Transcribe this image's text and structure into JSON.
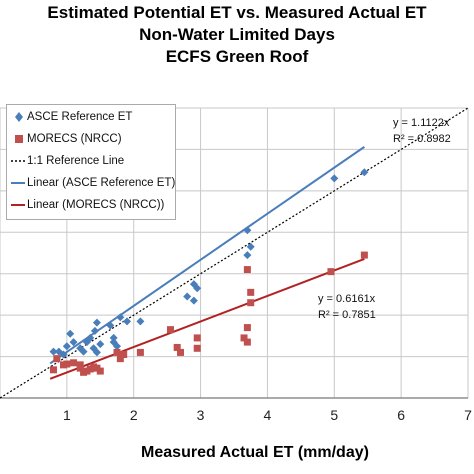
{
  "title_lines": [
    "Estimated Potential ET vs. Measured Actual ET",
    "Non-Water Limited Days",
    "ECFS Green Roof"
  ],
  "legend": [
    {
      "label": "ASCE Reference ET",
      "kind": "diamond",
      "color": "#4a7ebb"
    },
    {
      "label": "MORECS (NRCC)",
      "kind": "square",
      "color": "#c0504d"
    },
    {
      "label": "1:1 Reference Line",
      "kind": "dotted",
      "color": "#000000"
    },
    {
      "label": "Linear (ASCE Reference ET)",
      "kind": "line",
      "color": "#4a7ebb"
    },
    {
      "label": "Linear (MORECS (NRCC))",
      "kind": "line",
      "color": "#b22222"
    }
  ],
  "annotations": {
    "asce_eq": "y = 1.1122x",
    "asce_r2": "R² = 0.8982",
    "morecs_eq": "y = 0.6161x",
    "morecs_r2": "R² = 0.7851"
  },
  "chart_data": {
    "type": "scatter",
    "xlabel": "Measured Actual ET (mm/day)",
    "ylabel": "",
    "xlim": [
      0,
      7
    ],
    "ylim": [
      0,
      7
    ],
    "x_ticks": [
      1,
      2,
      3,
      4,
      5,
      6,
      7
    ],
    "grid": true,
    "legend_position": "top-left",
    "series": [
      {
        "name": "ASCE Reference ET",
        "marker": "diamond",
        "color": "#4a7ebb",
        "points": [
          [
            0.8,
            1.12
          ],
          [
            0.88,
            1.12
          ],
          [
            0.95,
            1.05
          ],
          [
            1.0,
            1.25
          ],
          [
            1.05,
            1.55
          ],
          [
            1.1,
            1.35
          ],
          [
            1.2,
            1.2
          ],
          [
            1.25,
            1.12
          ],
          [
            1.3,
            1.35
          ],
          [
            1.35,
            1.45
          ],
          [
            1.4,
            1.2
          ],
          [
            1.42,
            1.62
          ],
          [
            1.45,
            1.82
          ],
          [
            1.5,
            1.3
          ],
          [
            1.45,
            1.1
          ],
          [
            1.65,
            1.75
          ],
          [
            1.7,
            1.45
          ],
          [
            1.7,
            1.35
          ],
          [
            1.75,
            1.25
          ],
          [
            1.8,
            1.95
          ],
          [
            1.9,
            1.85
          ],
          [
            2.1,
            1.85
          ],
          [
            2.8,
            2.45
          ],
          [
            2.9,
            2.35
          ],
          [
            2.95,
            2.65
          ],
          [
            2.9,
            2.75
          ],
          [
            3.7,
            3.45
          ],
          [
            3.75,
            3.65
          ],
          [
            3.7,
            4.05
          ],
          [
            5.0,
            5.3
          ],
          [
            5.45,
            5.45
          ]
        ]
      },
      {
        "name": "MORECS (NRCC)",
        "marker": "square",
        "color": "#c0504d",
        "points": [
          [
            0.8,
            0.68
          ],
          [
            0.85,
            0.95
          ],
          [
            0.95,
            0.8
          ],
          [
            1.0,
            0.82
          ],
          [
            1.1,
            0.85
          ],
          [
            1.2,
            0.8
          ],
          [
            1.2,
            0.72
          ],
          [
            1.25,
            0.62
          ],
          [
            1.3,
            0.65
          ],
          [
            1.35,
            0.7
          ],
          [
            1.4,
            0.75
          ],
          [
            1.45,
            0.72
          ],
          [
            1.5,
            0.65
          ],
          [
            1.75,
            1.1
          ],
          [
            1.85,
            1.05
          ],
          [
            1.8,
            0.95
          ],
          [
            2.1,
            1.1
          ],
          [
            2.55,
            1.65
          ],
          [
            2.65,
            1.22
          ],
          [
            2.7,
            1.1
          ],
          [
            2.95,
            1.45
          ],
          [
            2.95,
            1.2
          ],
          [
            3.65,
            1.45
          ],
          [
            3.7,
            1.35
          ],
          [
            3.7,
            1.7
          ],
          [
            3.75,
            2.3
          ],
          [
            3.75,
            2.55
          ],
          [
            3.7,
            3.1
          ],
          [
            4.95,
            3.05
          ],
          [
            5.45,
            3.45
          ]
        ]
      }
    ],
    "fits": [
      {
        "name": "Linear (ASCE Reference ET)",
        "slope": 1.1122,
        "r2": 0.8982,
        "x_range": [
          0.75,
          5.45
        ]
      },
      {
        "name": "Linear (MORECS (NRCC))",
        "slope": 0.6161,
        "r2": 0.7851,
        "x_range": [
          0.75,
          5.45
        ]
      }
    ],
    "reference_line": {
      "name": "1:1 Reference Line",
      "slope": 1
    }
  }
}
